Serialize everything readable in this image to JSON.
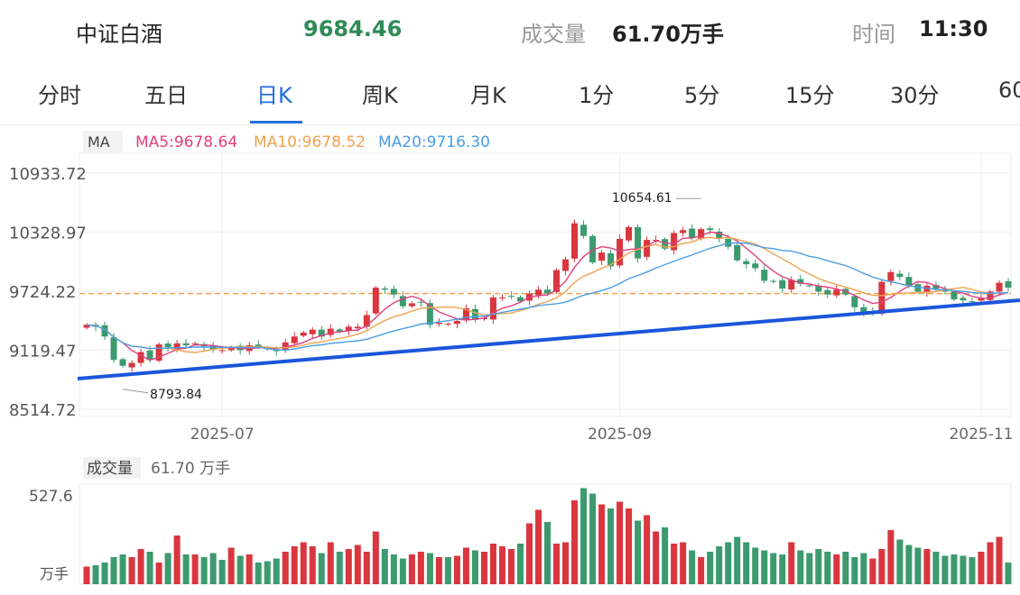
{
  "header": {
    "name": "中证白酒",
    "price": "9684.46",
    "volume_label": "成交量",
    "volume_value": "61.70万手",
    "time_label": "时间",
    "time_value": "11:30"
  },
  "tabs": [
    {
      "label": "分时"
    },
    {
      "label": "五日"
    },
    {
      "label": "日K",
      "active": true
    },
    {
      "label": "周K"
    },
    {
      "label": "月K"
    },
    {
      "label": "1分"
    },
    {
      "label": "5分"
    },
    {
      "label": "15分"
    },
    {
      "label": "30分"
    },
    {
      "label": "60"
    }
  ],
  "colors": {
    "up": "#d9363e",
    "down": "#3c9a6e",
    "ma5": "#e0407f",
    "ma10": "#f0a24c",
    "ma20": "#4a9ee8",
    "trend": "#1a56db",
    "accent": "#1f6fde",
    "price": "#2e8b57"
  },
  "chart_data": {
    "type": "candlestick",
    "legend": {
      "tag": "MA",
      "ma5": "MA5:9678.64",
      "ma10": "MA10:9678.52",
      "ma20": "MA20:9716.30"
    },
    "y_ticks": [
      "10933.72",
      "10328.97",
      "9724.22",
      "9119.47",
      "8514.72"
    ],
    "ylim": [
      8514.72,
      10933.72
    ],
    "x_ticks": [
      "2025-07",
      "2025-09",
      "2025-11"
    ],
    "max_label": "10654.61",
    "min_label": "8793.84",
    "reference_line": 9700,
    "closes": [
      9380,
      9360,
      9260,
      9020,
      8960,
      8990,
      9100,
      9020,
      9180,
      9150,
      9190,
      9170,
      9190,
      9160,
      9130,
      9120,
      9150,
      9120,
      9170,
      9160,
      9130,
      9110,
      9200,
      9260,
      9300,
      9330,
      9260,
      9340,
      9310,
      9360,
      9360,
      9480,
      9760,
      9740,
      9690,
      9570,
      9600,
      9610,
      9380,
      9400,
      9390,
      9420,
      9550,
      9430,
      9450,
      9660,
      9660,
      9670,
      9620,
      9700,
      9740,
      9700,
      9940,
      10050,
      10420,
      10290,
      10020,
      10120,
      9980,
      10260,
      10380,
      10060,
      10250,
      10250,
      10160,
      10320,
      10350,
      10270,
      10360,
      10350,
      10260,
      10180,
      10040,
      10000,
      9960,
      9830,
      9820,
      9750,
      9840,
      9800,
      9780,
      9720,
      9690,
      9740,
      9690,
      9560,
      9500,
      9500,
      9820,
      9920,
      9870,
      9780,
      9720,
      9780,
      9750,
      9720,
      9640,
      9630,
      9620,
      9650,
      9720,
      9810,
      9760
    ],
    "volumes": [
      130,
      140,
      160,
      200,
      220,
      200,
      260,
      240,
      160,
      230,
      360,
      220,
      220,
      200,
      230,
      180,
      270,
      210,
      220,
      160,
      170,
      190,
      240,
      280,
      310,
      280,
      230,
      310,
      240,
      260,
      290,
      240,
      390,
      260,
      220,
      190,
      220,
      240,
      230,
      200,
      200,
      210,
      270,
      250,
      240,
      300,
      280,
      260,
      300,
      450,
      550,
      460,
      300,
      310,
      620,
      710,
      670,
      590,
      560,
      610,
      560,
      470,
      510,
      390,
      420,
      300,
      310,
      250,
      200,
      240,
      280,
      310,
      350,
      310,
      270,
      250,
      230,
      220,
      310,
      250,
      230,
      260,
      240,
      220,
      240,
      200,
      230,
      190,
      260,
      400,
      330,
      290,
      270,
      260,
      240,
      210,
      220,
      210,
      200,
      240,
      310,
      350,
      160
    ],
    "volume_panel": {
      "label": "成交量",
      "value": "61.70 万手",
      "max": "527.6",
      "unit": "万手"
    }
  }
}
